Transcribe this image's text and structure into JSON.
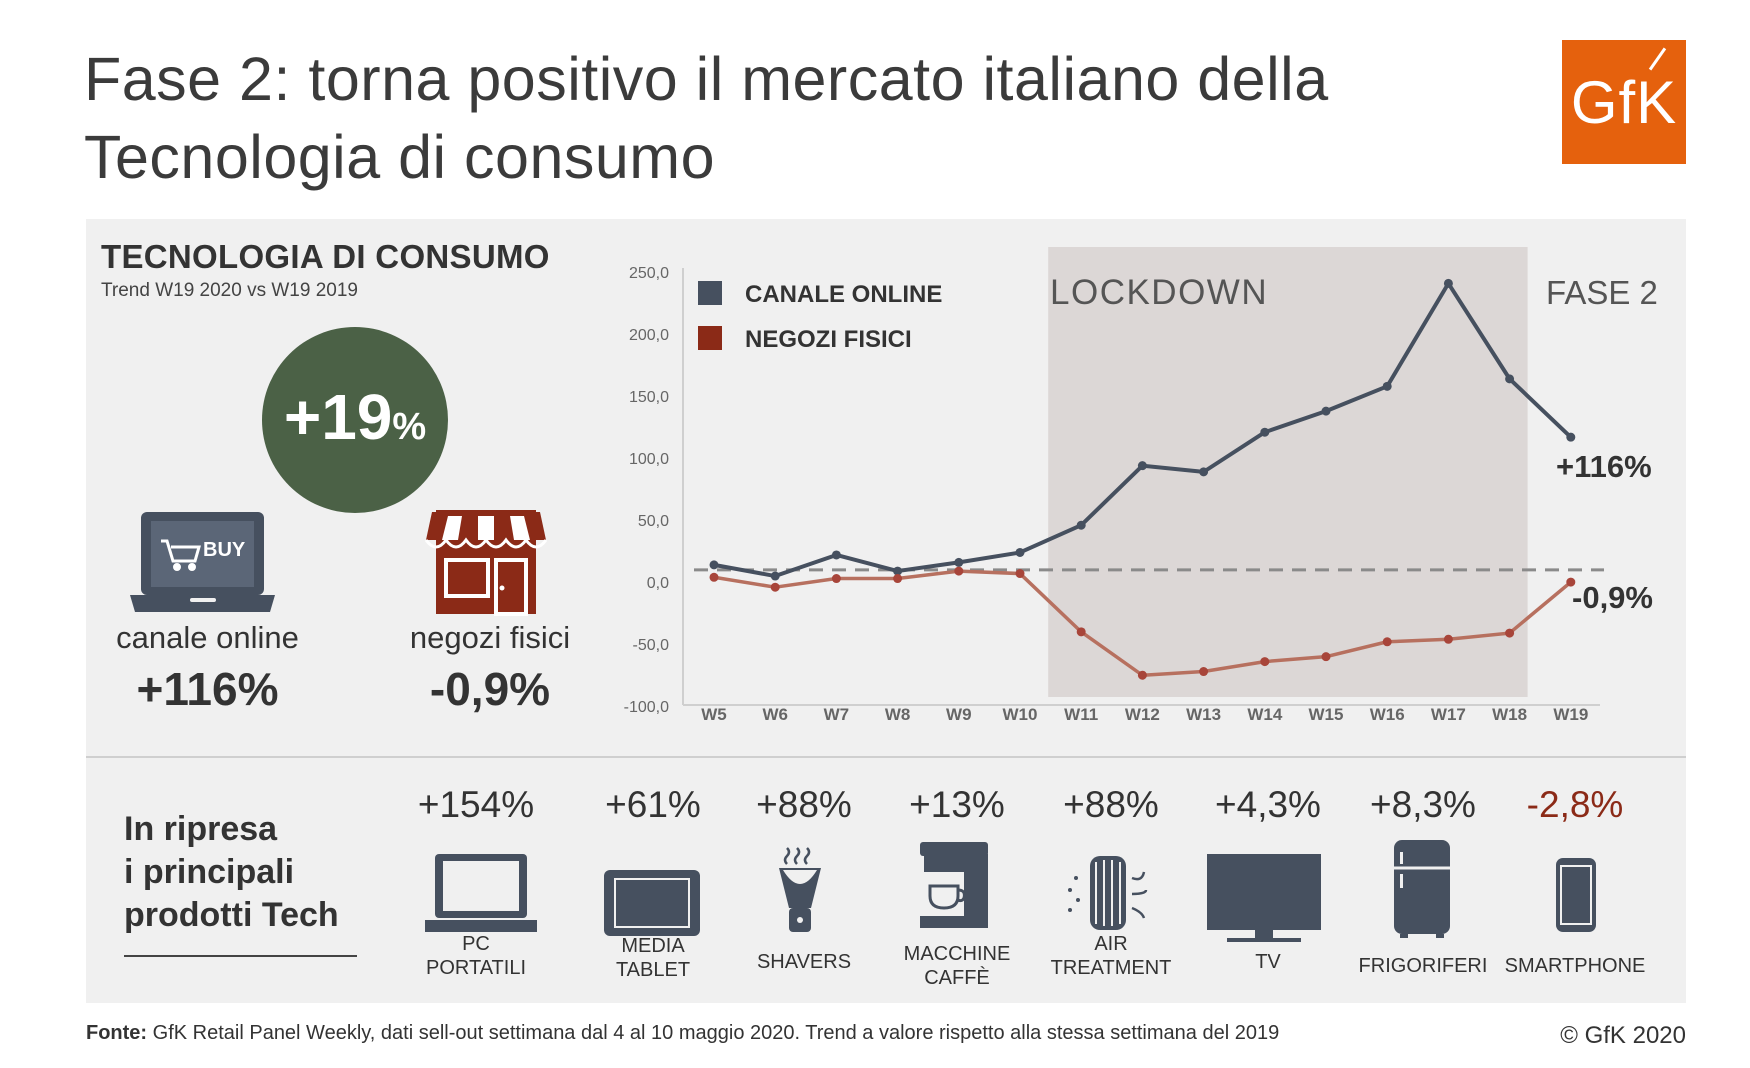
{
  "header": {
    "title_line1": "Fase 2: torna positivo il mercato italiano della",
    "title_line2": "Tecnologia di consumo",
    "logo_text": "GfK",
    "brand_color": "#e5610d"
  },
  "summary": {
    "title": "TECNOLOGIA DI CONSUMO",
    "subtitle": "Trend W19 2020 vs W19 2019",
    "total_value": "+19",
    "total_unit": "%",
    "online_label": "canale online",
    "online_value": "+116%",
    "online_icon_text": "BUY",
    "physical_label": "negozi fisici",
    "physical_value": "-0,9%",
    "circle_color": "#4b6146"
  },
  "chart_data": {
    "type": "line",
    "categories": [
      "W5",
      "W6",
      "W7",
      "W8",
      "W9",
      "W10",
      "W11",
      "W12",
      "W13",
      "W14",
      "W15",
      "W16",
      "W17",
      "W18",
      "W19"
    ],
    "series": [
      {
        "name": "CANALE ONLINE",
        "color": "#46505f",
        "values": [
          13,
          4,
          21,
          8,
          15,
          23,
          45,
          93,
          88,
          120,
          137,
          157,
          240,
          163,
          116
        ]
      },
      {
        "name": "NEGOZI FISICI",
        "color": "#b7705f",
        "legend_color": "#8b2a17",
        "values": [
          3,
          -5,
          2,
          2,
          8,
          6,
          -41,
          -76,
          -73,
          -65,
          -61,
          -49,
          -47,
          -42,
          -0.9
        ]
      }
    ],
    "yticks": [
      "250,0",
      "200,0",
      "150,0",
      "100,0",
      "50,0",
      "0,0",
      "-50,0",
      "-100,0"
    ],
    "ylim": [
      -100,
      250
    ],
    "baseline_value": 9,
    "annotations": {
      "lockdown_label": "LOCKDOWN",
      "fase2_label": "FASE 2",
      "lockdown_range": [
        "W11",
        "W18"
      ],
      "online_end_label": "+116%",
      "physical_end_label": "-0,9%"
    },
    "legend_position": "top-left"
  },
  "tech": {
    "title_line1": "In ripresa",
    "title_line2": "i principali",
    "title_line3": "prodotti Tech",
    "products": [
      {
        "pct": "+154%",
        "name1": "PC",
        "name2": "PORTATILI",
        "icon": "laptop-icon"
      },
      {
        "pct": "+61%",
        "name1": "MEDIA",
        "name2": "TABLET",
        "icon": "tablet-icon"
      },
      {
        "pct": "+88%",
        "name1": "SHAVERS",
        "name2": "",
        "icon": "shaver-icon"
      },
      {
        "pct": "+13%",
        "name1": "MACCHINE",
        "name2": "CAFFÈ",
        "icon": "coffee-machine-icon"
      },
      {
        "pct": "+88%",
        "name1": "AIR",
        "name2": "TREATMENT",
        "icon": "air-treatment-icon"
      },
      {
        "pct": "+4,3%",
        "name1": "TV",
        "name2": "",
        "icon": "tv-icon"
      },
      {
        "pct": "+8,3%",
        "name1": "FRIGORIFERI",
        "name2": "",
        "icon": "fridge-icon"
      },
      {
        "pct": "-2,8%",
        "name1": "SMARTPHONE",
        "name2": "",
        "icon": "smartphone-icon"
      }
    ]
  },
  "footer": {
    "source_label": "Fonte:",
    "source_text": " GfK Retail Panel Weekly, dati sell-out settimana dal 4 al 10 maggio 2020. Trend a valore rispetto alla stessa settimana del 2019",
    "copyright": "© GfK 2020"
  }
}
